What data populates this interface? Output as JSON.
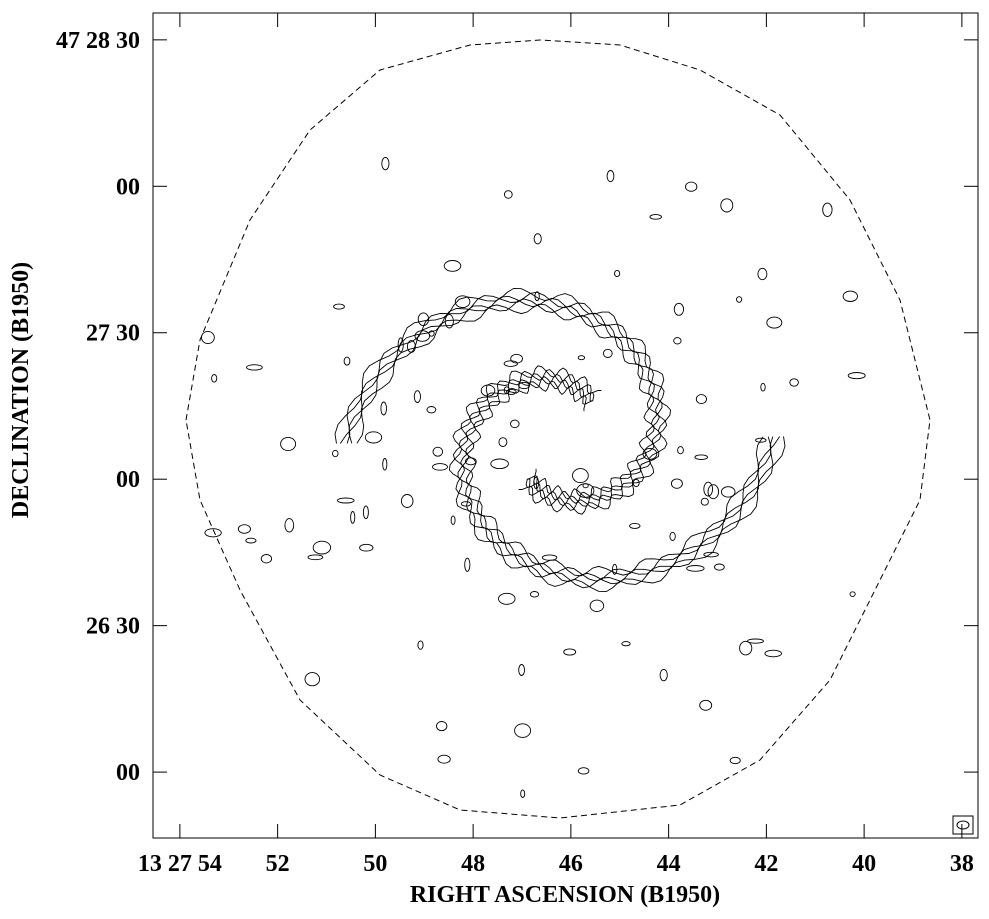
{
  "chart_data": {
    "type": "contour",
    "xlabel": "RIGHT ASCENSION (B1950)",
    "ylabel": "DECLINATION (B1950)",
    "xlim": [
      54.55,
      37.67
    ],
    "ylim": [
      -13.5,
      155.5
    ],
    "xticks": [
      {
        "value": 54,
        "label": "13 27 54"
      },
      52,
      50,
      48,
      46,
      44,
      42,
      40,
      38
    ],
    "yticks": [
      {
        "value": 150,
        "label": "47 28 30"
      },
      {
        "value": 120,
        "label": "00"
      },
      {
        "value": 90,
        "label": "27 30"
      },
      {
        "value": 60,
        "label": "00"
      },
      {
        "value": 30,
        "label": "26 30"
      },
      {
        "value": 0,
        "label": "00"
      }
    ]
  }
}
